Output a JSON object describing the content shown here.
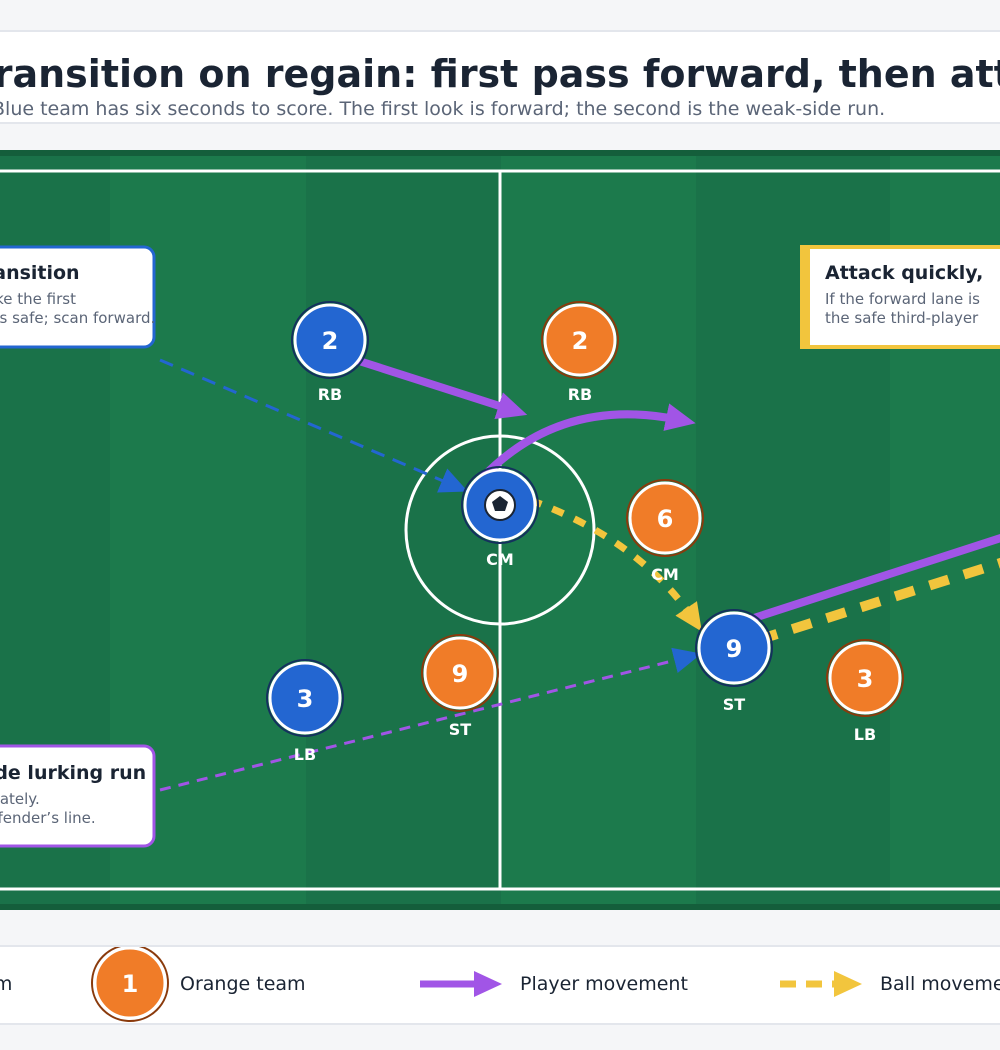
{
  "header": {
    "title": "Transition on regain: first pass forward, then attack",
    "subtitle": "Blue team has six seconds to score. The first look is forward; the second is the weak-side run."
  },
  "callouts": {
    "top_left": {
      "title": "Transition",
      "line1": "Make the first",
      "line2": "pass safe; scan forward."
    },
    "top_right": {
      "title": "Attack quickly,",
      "line1": "If the forward lane is",
      "line2": "the safe third-player"
    },
    "bottom_left": {
      "title": "Weak-side lurking run",
      "line1": "Run immediately.",
      "line2": "Beat the defender’s line."
    }
  },
  "players": {
    "blue": [
      {
        "number": "2",
        "role": "RB"
      },
      {
        "number": "",
        "role": "CM"
      },
      {
        "number": "3",
        "role": "LB"
      },
      {
        "number": "9",
        "role": "ST"
      }
    ],
    "orange": [
      {
        "number": "2",
        "role": "RB"
      },
      {
        "number": "6",
        "role": "CM"
      },
      {
        "number": "9",
        "role": "ST"
      },
      {
        "number": "3",
        "role": "LB"
      }
    ]
  },
  "legend": {
    "blue_label": "Blue team",
    "orange_number": "1",
    "orange_label": "Orange team",
    "player_movement": "Player movement",
    "ball_movement": "Ball movement"
  },
  "colors": {
    "blue_team": "#2366d1",
    "orange_team": "#f07c28",
    "player_movement": "#a155e6",
    "ball_movement": "#f2c53d",
    "pitch_dark": "#1a7249",
    "pitch_light": "#1e7f4f"
  }
}
